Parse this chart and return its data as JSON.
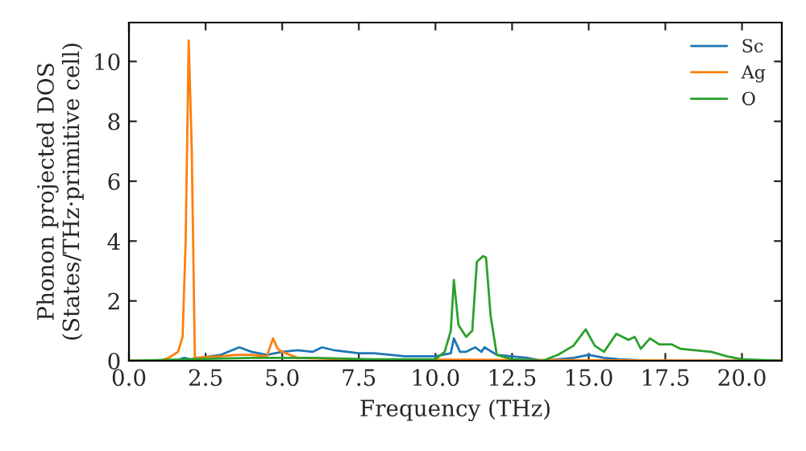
{
  "chart_data": {
    "type": "line",
    "xlabel": "Frequency (THz)",
    "ylabel": "Phonon projected DOS\n(States/THz·primitive cell)",
    "xlim": [
      0,
      21.3
    ],
    "ylim": [
      0,
      11.3
    ],
    "xticks": [
      {
        "value": 0,
        "label": "0.0"
      },
      {
        "value": 2.5,
        "label": "2.5"
      },
      {
        "value": 5,
        "label": "5.0"
      },
      {
        "value": 7.5,
        "label": "7.5"
      },
      {
        "value": 10,
        "label": "10.0"
      },
      {
        "value": 12.5,
        "label": "12.5"
      },
      {
        "value": 15,
        "label": "15.0"
      },
      {
        "value": 17.5,
        "label": "17.5"
      },
      {
        "value": 20,
        "label": "20.0"
      }
    ],
    "yticks": [
      0,
      2,
      4,
      6,
      8,
      10
    ],
    "grid": false,
    "legend": "top right",
    "marker": "none",
    "line_style": "solid",
    "series": [
      {
        "name": "Sc",
        "color": "#1f77b4",
        "x": [
          0,
          1.5,
          1.8,
          2.0,
          3.0,
          3.6,
          4.0,
          4.5,
          5.0,
          5.5,
          6.0,
          6.3,
          6.7,
          7.5,
          8.0,
          9.0,
          10.0,
          10.5,
          10.6,
          10.8,
          11.0,
          11.3,
          11.5,
          11.6,
          12.0,
          13.0,
          13.5,
          14.5,
          15.0,
          15.5,
          16.0,
          17.0,
          21.3
        ],
        "values": [
          0,
          0,
          0.1,
          0.05,
          0.2,
          0.45,
          0.3,
          0.2,
          0.3,
          0.35,
          0.3,
          0.45,
          0.35,
          0.25,
          0.25,
          0.15,
          0.15,
          0.25,
          0.75,
          0.3,
          0.3,
          0.45,
          0.3,
          0.45,
          0.2,
          0.1,
          0,
          0.1,
          0.2,
          0.1,
          0.05,
          0,
          0
        ]
      },
      {
        "name": "Ag",
        "color": "#ff7f0e",
        "x": [
          0,
          1.0,
          1.3,
          1.6,
          1.75,
          1.85,
          1.95,
          2.05,
          2.15,
          3.0,
          3.5,
          4.0,
          4.5,
          4.7,
          4.85,
          5.0,
          5.5,
          7.0,
          21.3
        ],
        "values": [
          0,
          0,
          0.1,
          0.3,
          0.8,
          4,
          10.7,
          7,
          0.1,
          0.15,
          0.2,
          0.2,
          0.15,
          0.75,
          0.4,
          0.3,
          0.1,
          0.05,
          0
        ]
      },
      {
        "name": "O",
        "color": "#2ca02c",
        "x": [
          0,
          2.0,
          4.0,
          6.0,
          8.0,
          9.5,
          10.0,
          10.3,
          10.5,
          10.6,
          10.75,
          11.0,
          11.2,
          11.35,
          11.55,
          11.65,
          11.8,
          12.0,
          12.5,
          13.5,
          14.0,
          14.5,
          14.9,
          15.2,
          15.5,
          15.9,
          16.3,
          16.5,
          16.7,
          17.0,
          17.3,
          17.7,
          18.0,
          19.0,
          19.5,
          20.0,
          21.3
        ],
        "values": [
          0,
          0.05,
          0.1,
          0.1,
          0.05,
          0.05,
          0.05,
          0.3,
          1.0,
          2.7,
          1.2,
          0.8,
          1.0,
          3.3,
          3.5,
          3.45,
          1.5,
          0.2,
          0.05,
          0,
          0.2,
          0.5,
          1.05,
          0.5,
          0.3,
          0.9,
          0.7,
          0.8,
          0.4,
          0.75,
          0.55,
          0.55,
          0.4,
          0.3,
          0.15,
          0.05,
          0
        ]
      }
    ]
  }
}
